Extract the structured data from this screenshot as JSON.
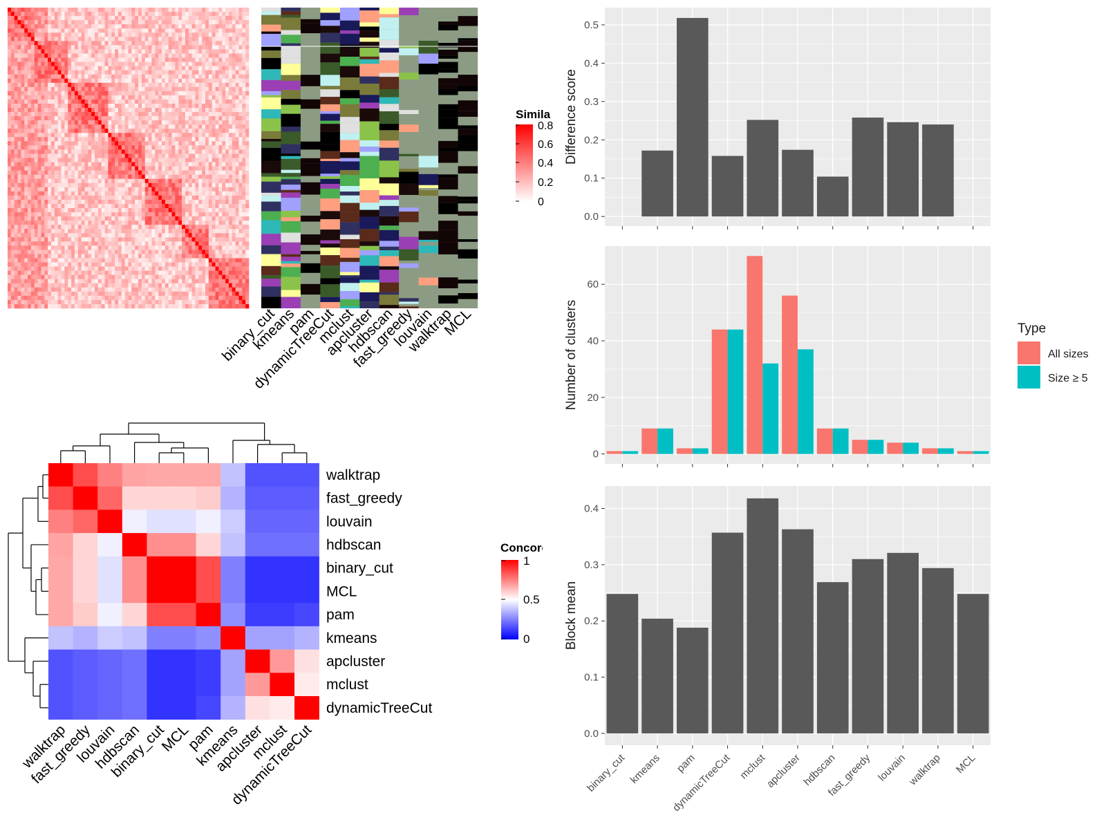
{
  "colors": {
    "panel_bg": "#ebebeb",
    "grid": "#ffffff",
    "bar_dark": "#595959",
    "all_sizes": "#f8766d",
    "size_ge5": "#00bfc4",
    "sim_high": "#ff0000",
    "sim_low": "#ffffff",
    "conc_high": "#ff0000",
    "conc_mid": "#ffffff",
    "conc_low": "#0000ff",
    "cluster_bg": "#8c9c84"
  },
  "methods": [
    "binary_cut",
    "kmeans",
    "pam",
    "dynamicTreeCut",
    "mclust",
    "apcluster",
    "hdbscan",
    "fast_greedy",
    "louvain",
    "walktrap",
    "MCL"
  ],
  "similarity_legend": {
    "title": "Simila",
    "ticks": [
      "0.8",
      "0.6",
      "0.4",
      "0.2",
      "0"
    ]
  },
  "concordance_legend": {
    "title": "Concorc",
    "ticks": [
      "1",
      "0.5",
      "0"
    ]
  },
  "type_legend": {
    "title": "Type",
    "items": [
      "All sizes",
      "Size ≥ 5"
    ]
  },
  "chart_data": [
    {
      "type": "heatmap",
      "panel": "similarity_matrix",
      "legend_title": "Simila",
      "value_range": [
        0,
        0.8
      ]
    },
    {
      "type": "heatmap",
      "panel": "cluster_assignments",
      "columns": [
        "binary_cut",
        "kmeans",
        "pam",
        "dynamicTreeCut",
        "mclust",
        "apcluster",
        "hdbscan",
        "fast_greedy",
        "louvain",
        "walktrap",
        "MCL"
      ]
    },
    {
      "type": "heatmap",
      "panel": "method_concordance",
      "legend_title": "Concorc",
      "value_range": [
        0,
        1
      ],
      "rows": [
        "walktrap",
        "fast_greedy",
        "louvain",
        "hdbscan",
        "binary_cut",
        "MCL",
        "pam",
        "kmeans",
        "apcluster",
        "mclust",
        "dynamicTreeCut"
      ],
      "columns": [
        "walktrap",
        "fast_greedy",
        "louvain",
        "hdbscan",
        "binary_cut",
        "MCL",
        "pam",
        "kmeans",
        "apcluster",
        "mclust",
        "dynamicTreeCut"
      ],
      "values": [
        [
          1.0,
          0.85,
          0.75,
          0.68,
          0.67,
          0.67,
          0.67,
          0.38,
          0.16,
          0.16,
          0.16
        ],
        [
          0.85,
          1.0,
          0.8,
          0.58,
          0.58,
          0.58,
          0.6,
          0.35,
          0.18,
          0.18,
          0.18
        ],
        [
          0.75,
          0.8,
          1.0,
          0.47,
          0.44,
          0.44,
          0.47,
          0.4,
          0.2,
          0.2,
          0.2
        ],
        [
          0.68,
          0.58,
          0.47,
          1.0,
          0.72,
          0.72,
          0.58,
          0.38,
          0.22,
          0.22,
          0.22
        ],
        [
          0.67,
          0.58,
          0.44,
          0.72,
          1.0,
          1.0,
          0.85,
          0.25,
          0.1,
          0.1,
          0.1
        ],
        [
          0.67,
          0.58,
          0.44,
          0.72,
          1.0,
          1.0,
          0.85,
          0.25,
          0.1,
          0.1,
          0.1
        ],
        [
          0.67,
          0.6,
          0.47,
          0.58,
          0.85,
          0.85,
          1.0,
          0.28,
          0.12,
          0.12,
          0.14
        ],
        [
          0.38,
          0.35,
          0.4,
          0.38,
          0.25,
          0.25,
          0.28,
          1.0,
          0.32,
          0.32,
          0.35
        ],
        [
          0.16,
          0.18,
          0.2,
          0.22,
          0.1,
          0.1,
          0.12,
          0.32,
          1.0,
          0.7,
          0.56
        ],
        [
          0.16,
          0.18,
          0.2,
          0.22,
          0.1,
          0.1,
          0.12,
          0.32,
          0.7,
          1.0,
          0.54
        ],
        [
          0.16,
          0.18,
          0.2,
          0.22,
          0.1,
          0.1,
          0.14,
          0.35,
          0.56,
          0.54,
          1.0
        ]
      ]
    },
    {
      "type": "bar",
      "panel": "difference_score",
      "categories": [
        "binary_cut",
        "kmeans",
        "pam",
        "dynamicTreeCut",
        "mclust",
        "apcluster",
        "hdbscan",
        "fast_greedy",
        "louvain",
        "walktrap",
        "MCL"
      ],
      "values": [
        0,
        0.172,
        0.518,
        0.158,
        0.252,
        0.174,
        0.104,
        0.258,
        0.246,
        0.24,
        0
      ],
      "ylabel": "Difference score",
      "ylim": [
        -0.025,
        0.545
      ],
      "yticks": [
        0.0,
        0.1,
        0.2,
        0.3,
        0.4,
        0.5
      ]
    },
    {
      "type": "bar",
      "panel": "number_of_clusters",
      "categories": [
        "binary_cut",
        "kmeans",
        "pam",
        "dynamicTreeCut",
        "mclust",
        "apcluster",
        "hdbscan",
        "fast_greedy",
        "louvain",
        "walktrap",
        "MCL"
      ],
      "series": [
        {
          "name": "All sizes",
          "values": [
            1,
            9,
            2,
            44,
            70,
            56,
            9,
            5,
            4,
            2,
            1
          ]
        },
        {
          "name": "Size ≥ 5",
          "values": [
            1,
            9,
            2,
            44,
            32,
            37,
            9,
            5,
            4,
            2,
            1
          ]
        }
      ],
      "ylabel": "Number of clusters",
      "ylim": [
        -3.5,
        73.5
      ],
      "yticks": [
        0,
        20,
        40,
        60
      ]
    },
    {
      "type": "bar",
      "panel": "block_mean",
      "categories": [
        "binary_cut",
        "kmeans",
        "pam",
        "dynamicTreeCut",
        "mclust",
        "apcluster",
        "hdbscan",
        "fast_greedy",
        "louvain",
        "walktrap",
        "MCL"
      ],
      "values": [
        0.248,
        0.204,
        0.188,
        0.357,
        0.418,
        0.363,
        0.269,
        0.31,
        0.321,
        0.294,
        0.248
      ],
      "ylabel": "Block mean",
      "ylim": [
        -0.021,
        0.44
      ],
      "yticks": [
        0.0,
        0.1,
        0.2,
        0.3,
        0.4
      ]
    }
  ]
}
